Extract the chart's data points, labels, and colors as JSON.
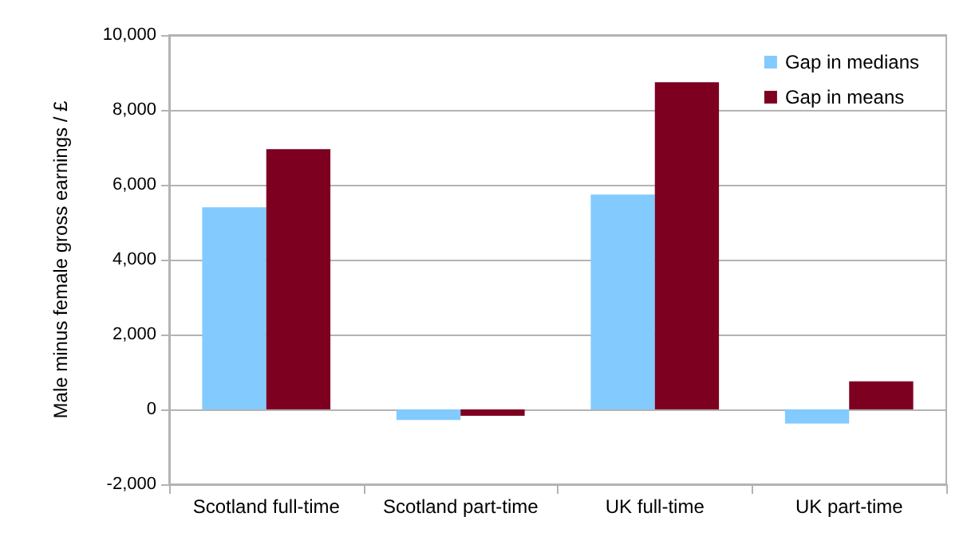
{
  "chart_data": {
    "type": "bar",
    "ylabel": "Male minus female gross earnings / £",
    "categories": [
      "Scotland full-time",
      "Scotland part-time",
      "UK full-time",
      "UK part-time"
    ],
    "series": [
      {
        "name": "Gap in medians",
        "color": "#83caff",
        "values": [
          5400,
          -280,
          5740,
          -380
        ]
      },
      {
        "name": "Gap in means",
        "color": "#7e0021",
        "values": [
          6950,
          -170,
          8740,
          750
        ]
      }
    ],
    "ylim": [
      -2000,
      10000
    ],
    "yticks": [
      {
        "value": -2000,
        "label": "-2,000"
      },
      0,
      {
        "value": 2000,
        "label": "2,000"
      },
      {
        "value": 4000,
        "label": "4,000"
      },
      {
        "value": 6000,
        "label": "6,000"
      },
      {
        "value": 8000,
        "label": "8,000"
      },
      {
        "value": 10000,
        "label": "10,000"
      }
    ],
    "grid": "y",
    "legend": "top right"
  }
}
